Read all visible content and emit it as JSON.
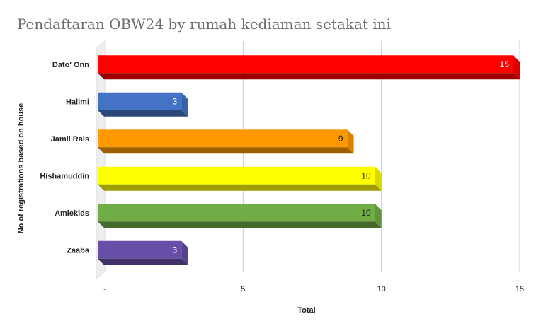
{
  "chart_data": {
    "type": "bar",
    "orientation": "horizontal",
    "style": "3d",
    "title": "Pendaftaran OBW24 by rumah kediaman setakat ini",
    "xlabel": "Total",
    "ylabel": "No of registrations based on house",
    "categories": [
      "Dato' Onn",
      "Halimi",
      "Jamil Rais",
      "Hishamuddin",
      "Amiekids",
      "Zaaba"
    ],
    "values": [
      15,
      3,
      9,
      10,
      10,
      3
    ],
    "colors": [
      "#ff0000",
      "#4472c4",
      "#ff9900",
      "#ffff00",
      "#70ad47",
      "#674ea7"
    ],
    "value_label_colors": [
      "#ffffff",
      "#ffffff",
      "#222222",
      "#222222",
      "#222222",
      "#ffffff"
    ],
    "xlim": [
      0,
      15
    ],
    "xticks": [
      0,
      5,
      10,
      15
    ],
    "xtick_labels": [
      "-",
      "5",
      "10",
      "15"
    ],
    "grid": true,
    "legend": "none"
  }
}
